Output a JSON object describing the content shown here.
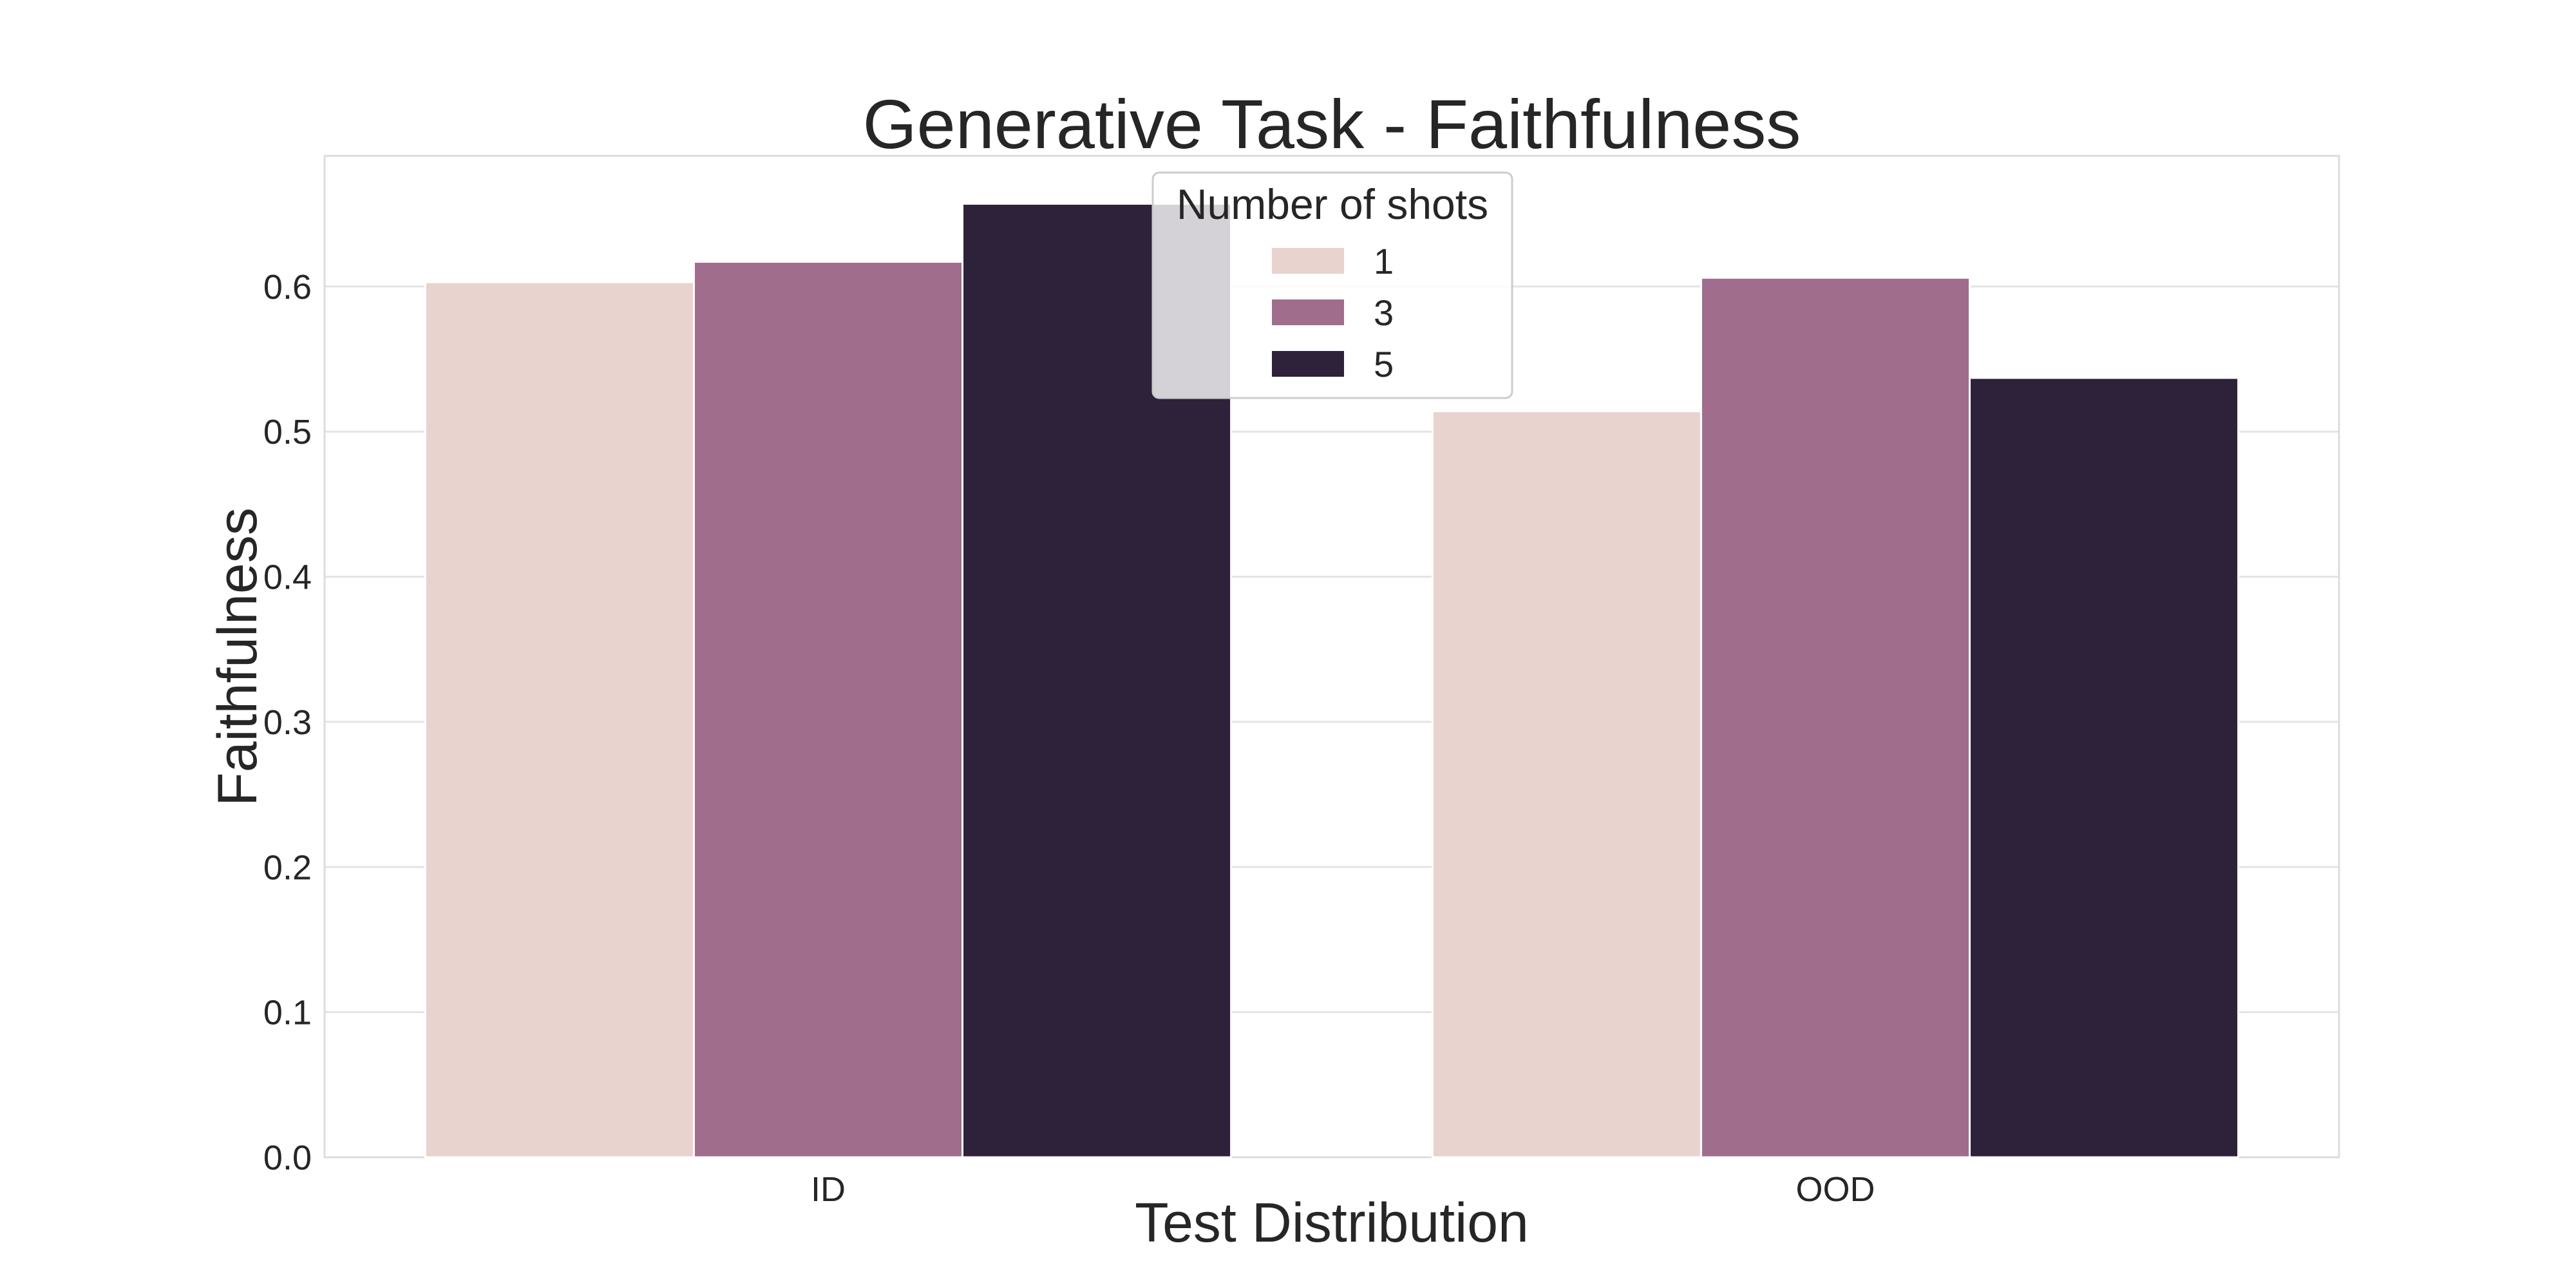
{
  "chart_data": {
    "type": "bar",
    "title": "Generative Task - Faithfulness",
    "xlabel": "Test Distribution",
    "ylabel": "Faithfulness",
    "categories": [
      "ID",
      "OOD"
    ],
    "series": [
      {
        "name": "1",
        "values": [
          0.603,
          0.514
        ],
        "color": "#e8d3cf"
      },
      {
        "name": "3",
        "values": [
          0.617,
          0.606
        ],
        "color": "#a06e8c"
      },
      {
        "name": "5",
        "values": [
          0.657,
          0.537
        ],
        "color": "#2e213a"
      }
    ],
    "ylim": [
      0.0,
      0.69
    ],
    "yticks": [
      0.0,
      0.1,
      0.2,
      0.3,
      0.4,
      0.5,
      0.6
    ],
    "ytick_labels": [
      "0.0",
      "0.1",
      "0.2",
      "0.3",
      "0.4",
      "0.5",
      "0.6"
    ],
    "grid": true,
    "legend": {
      "title": "Number of shots",
      "position": "upper-center"
    }
  }
}
